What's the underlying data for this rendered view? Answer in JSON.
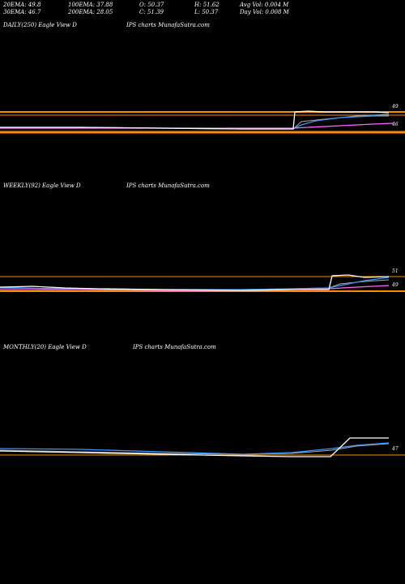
{
  "stats": {
    "row1": [
      "20EMA: 49.8",
      "100EMA: 37.88",
      "O: 50.37",
      "H: 51.62",
      "Avg Vol: 0.004  M"
    ],
    "row2": [
      "30EMA: 46.7",
      "200EMA: 28.05",
      "C: 51.39",
      "L: 50.37",
      "Day Vol: 0.008  M"
    ]
  },
  "panels": [
    {
      "id": "daily",
      "label_left": "DAILY(250) Eagle   View  D",
      "label_right": "IPS charts MunafaSutra.com",
      "axis_labels": [
        "49",
        "46"
      ]
    },
    {
      "id": "weekly",
      "label_left": "WEEKLY(92) Eagle   View  D",
      "label_right": "IPS charts MunafaSutra.com",
      "axis_labels": [
        "51",
        "49"
      ]
    },
    {
      "id": "monthly",
      "label_left": "MONTHLY(20) Eagle   View  D",
      "label_right": "IPS charts MunafaSutra.com",
      "axis_labels": [
        "47"
      ]
    }
  ],
  "chart_data": [
    {
      "type": "line",
      "title": "DAILY(250) Eagle View D",
      "x": [
        0,
        0.7,
        0.72,
        0.74,
        0.8,
        0.9,
        0.95
      ],
      "series": [
        {
          "name": "",
          "color": "#ffffff",
          "values": [
            0.5,
            0.5,
            0.5,
            0.95,
            0.97,
            0.96,
            0.95
          ]
        },
        {
          "name": "",
          "color": "#3399ff",
          "values": [
            0.5,
            0.5,
            0.5,
            0.6,
            0.8,
            0.88,
            0.9
          ]
        },
        {
          "name": "",
          "color": "#ff66ff",
          "values": [
            0.5,
            0.5,
            0.5,
            0.52,
            0.55,
            0.6,
            0.63
          ]
        }
      ]
    },
    {
      "type": "line",
      "title": "WEEKLY(92) Eagle View D",
      "x": [
        0,
        0.8,
        0.82,
        0.85,
        0.9,
        0.95
      ],
      "series": [
        {
          "name": "",
          "color": "#ffffff",
          "values": [
            0.3,
            0.3,
            0.3,
            0.95,
            0.9,
            0.92
          ]
        },
        {
          "name": "",
          "color": "#3399ff",
          "values": [
            0.3,
            0.3,
            0.3,
            0.5,
            0.65,
            0.75
          ]
        }
      ]
    },
    {
      "type": "line",
      "title": "MONTHLY(20) Eagle View D",
      "x": [
        0,
        0.75,
        0.8,
        0.85,
        0.9,
        0.95
      ],
      "series": [
        {
          "name": "",
          "color": "#ffffff",
          "values": [
            0.25,
            0.2,
            0.2,
            0.9,
            0.9,
            0.9
          ]
        },
        {
          "name": "",
          "color": "#3399ff",
          "values": [
            0.3,
            0.3,
            0.35,
            0.6,
            0.7,
            0.75
          ]
        }
      ]
    }
  ],
  "colors": {
    "orange": "#ff8c00",
    "white": "#ffffff",
    "blue": "#3399ff",
    "magenta": "#ff66ff",
    "grey": "#aaaaaa"
  }
}
